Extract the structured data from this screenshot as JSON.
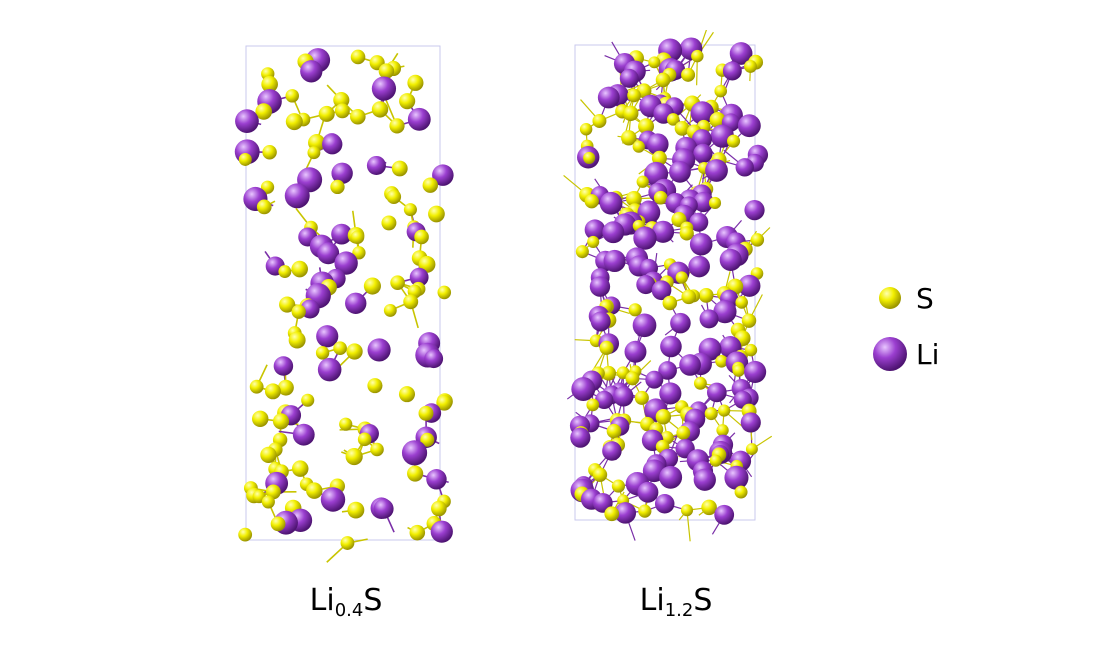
{
  "panels": [
    {
      "formula_base": "Li",
      "subscript": "0.4",
      "anion": "S"
    },
    {
      "formula_base": "Li",
      "subscript": "1.2",
      "anion": "S"
    }
  ],
  "legend": [
    {
      "label": "S",
      "color": "#f2ef00"
    },
    {
      "label": "Li",
      "color": "#9b3fd0"
    }
  ]
}
